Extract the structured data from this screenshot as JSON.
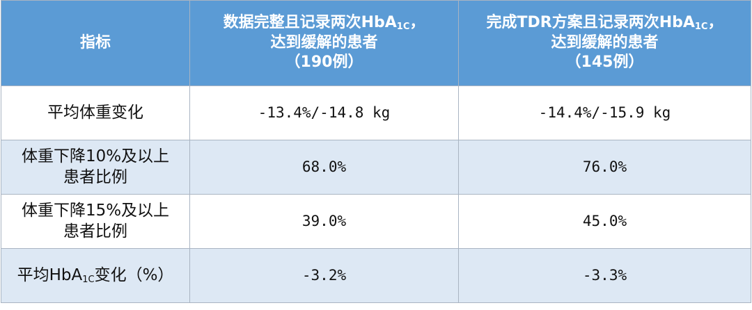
{
  "table": {
    "header": [
      [
        [
          "指标"
        ]
      ],
      [
        [
          "数据完整且记录两次HbA",
          {
            "sub": "1C"
          },
          "，"
        ],
        [
          "达到缓解的患者"
        ],
        [
          "（190例）"
        ]
      ],
      [
        [
          "完成TDR方案且记录两次HbA",
          {
            "sub": "1C"
          },
          "，"
        ],
        [
          "达到缓解的患者"
        ],
        [
          "（145例）"
        ]
      ]
    ],
    "rows": [
      [
        [
          [
            "平均体重变化"
          ]
        ],
        [
          [
            "-13.4%/-14.8 kg"
          ]
        ],
        [
          [
            "-14.4%/-15.9 kg"
          ]
        ]
      ],
      [
        [
          [
            "体重下降10%及以上"
          ],
          [
            "患者比例"
          ]
        ],
        [
          [
            "68.0%"
          ]
        ],
        [
          [
            "76.0%"
          ]
        ]
      ],
      [
        [
          [
            "体重下降15%及以上"
          ],
          [
            "患者比例"
          ]
        ],
        [
          [
            "39.0%"
          ]
        ],
        [
          [
            "45.0%"
          ]
        ]
      ],
      [
        [
          [
            "平均HbA",
            {
              "sub": "1C"
            },
            "变化（%）"
          ]
        ],
        [
          [
            "-3.2%"
          ]
        ],
        [
          [
            "-3.3%"
          ]
        ]
      ]
    ]
  }
}
